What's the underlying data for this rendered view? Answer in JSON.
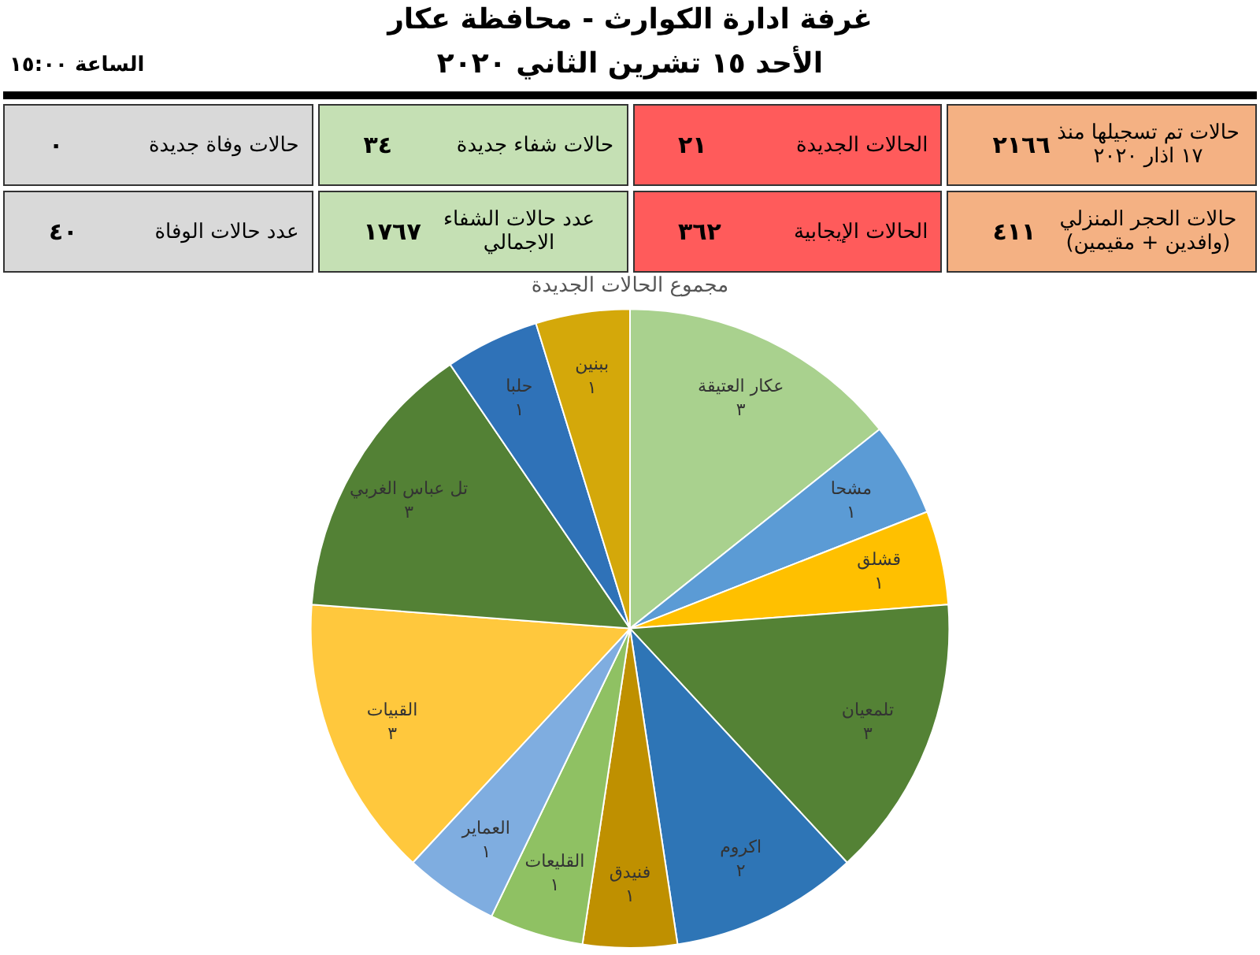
{
  "chart_data": [
    {
      "type": "other",
      "title": "غرفة ادارة الكوارث - محافظة عكار",
      "subtitle": "الأحد ١٥ تشرين الثاني ٢٠٢٠",
      "annotations": [
        "الساعة ١٥:٠٠",
        "حالات تم تسجيلها منذ ١٧ اذار ٢٠٢٠",
        "٢١٦٦",
        "الحالات الجديدة",
        "٢١",
        "حالات شفاء جديدة",
        "٣٤",
        "حالات وفاة  جديدة",
        "٠",
        "حالات الحجر المنزلي (وافدين + مقيمين)",
        "٤١١",
        "الحالات الإيجابية",
        "٣٦٢",
        "عدد حالات الشفاء الاجمالي",
        "١٧٦٧",
        "عدد حالات الوفاة",
        "٤٠"
      ]
    },
    {
      "type": "pie",
      "title": "مجموع الحالات الجديدة",
      "categories": [
        "عكار العتيقة",
        "مشحا",
        "قشلق",
        "تلمعيان",
        "اكروم",
        "فنيدق",
        "القليعات",
        "العماير",
        "القبيات",
        "تل عباس الغربي",
        "حلبا",
        "ببنين"
      ],
      "values": [
        3,
        1,
        1,
        3,
        2,
        1,
        1,
        1,
        3,
        3,
        1,
        1
      ],
      "value_labels": [
        "٣",
        "١",
        "١",
        "٣",
        "٢",
        "١",
        "١",
        "١",
        "٣",
        "٣",
        "١",
        "١"
      ],
      "colors": [
        "#a9d18e",
        "#5b9bd5",
        "#ffc000",
        "#548235",
        "#2e75b6",
        "#bf9000",
        "#8fc163",
        "#7fade0",
        "#ffc83d",
        "#538135",
        "#2f72b8",
        "#d4a80a"
      ]
    }
  ]
}
